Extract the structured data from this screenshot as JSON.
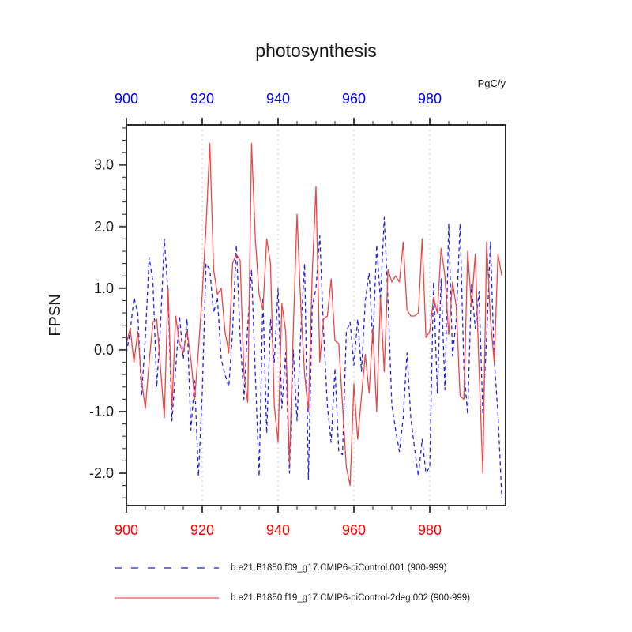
{
  "chart_data": {
    "type": "line",
    "title": "photosynthesis",
    "units": "PgC/y",
    "ylabel": "FPSN",
    "xlabel": "",
    "xlim": [
      900,
      1000
    ],
    "ylim": [
      -2.525,
      3.65
    ],
    "x_major_ticks": [
      900,
      920,
      940,
      960,
      980
    ],
    "x_minor_step": 5,
    "y_major_ticks": [
      3.0,
      2.0,
      1.0,
      0.0,
      -1.0,
      -2.0
    ],
    "y_minor_step": 0.2,
    "gridlines_x": [
      920,
      940,
      960,
      980
    ],
    "grid_style": "dotted",
    "top_axis_label_color": "#0000ff",
    "bottom_axis_label_color": "#ff0000",
    "x": {
      "start": 900,
      "end": 999,
      "step": 1
    },
    "series": [
      {
        "name": "b.e21.B1850.f09_g17.CMIP6-piControl.001 (900-999)",
        "color": "#2323e6",
        "style": "dashed",
        "values": [
          -0.05,
          0.3,
          0.85,
          0.6,
          -0.75,
          0.2,
          1.5,
          1.1,
          -0.6,
          0.4,
          1.8,
          0.9,
          -1.15,
          -0.3,
          0.55,
          -0.15,
          0.5,
          -1.3,
          -0.5,
          -2.05,
          -0.7,
          1.4,
          1.3,
          0.6,
          0.85,
          -0.15,
          -0.4,
          -0.6,
          0.3,
          1.7,
          0.2,
          -0.8,
          0.4,
          1.3,
          -0.4,
          -2.05,
          0.85,
          -1.35,
          0.5,
          -0.2,
          1.0,
          -0.95,
          -0.05,
          -2.0,
          0.0,
          -1.15,
          0.3,
          1.4,
          -2.1,
          0.7,
          1.0,
          1.85,
          0.3,
          -0.9,
          -1.5,
          -0.3,
          -1.65,
          -1.7,
          0.3,
          0.45,
          -0.25,
          0.5,
          -0.35,
          0.8,
          1.25,
          0.1,
          1.7,
          0.8,
          2.15,
          0.8,
          -0.9,
          -1.3,
          -1.65,
          -1.1,
          -0.05,
          -1.1,
          -1.6,
          -2.05,
          -1.45,
          -2.0,
          -1.9,
          1.1,
          -0.7,
          1.15,
          -0.65,
          2.05,
          -0.1,
          0.5,
          2.05,
          -0.3,
          -1.05,
          1.05,
          0.35,
          0.95,
          -1.05,
          0.2,
          1.75,
          -0.15,
          -1.05,
          -2.4
        ]
      },
      {
        "name": "b.e21.B1850.f19_g17.CMIP6-piControl-2deg.002 (900-999)",
        "color": "#f04545",
        "style": "solid",
        "values": [
          0.1,
          0.35,
          -0.2,
          0.3,
          -0.5,
          -0.95,
          -0.2,
          0.45,
          0.5,
          -0.3,
          -1.1,
          1.0,
          -0.95,
          0.55,
          0.1,
          -0.05,
          0.3,
          -0.15,
          -0.8,
          0.0,
          0.9,
          2.0,
          3.35,
          1.3,
          0.9,
          1.0,
          0.3,
          -0.05,
          1.4,
          1.55,
          1.45,
          -0.4,
          -0.85,
          3.35,
          1.8,
          0.9,
          0.65,
          1.8,
          1.4,
          -0.9,
          -1.5,
          0.75,
          0.3,
          -1.85,
          0.3,
          2.2,
          0.7,
          -0.4,
          -1.0,
          1.2,
          2.65,
          -0.2,
          0.5,
          0.55,
          1.15,
          0.15,
          0.1,
          -0.9,
          -1.9,
          -2.2,
          -0.55,
          -1.45,
          -0.75,
          -0.07,
          -0.7,
          0.35,
          -1.0,
          0.85,
          -0.35,
          1.3,
          1.1,
          1.2,
          1.1,
          1.75,
          0.65,
          0.55,
          0.55,
          0.6,
          1.8,
          0.2,
          0.3,
          0.85,
          0.6,
          1.65,
          1.2,
          0.25,
          1.1,
          0.7,
          -0.75,
          -0.8,
          1.6,
          0.7,
          1.55,
          -0.3,
          -2.0,
          1.75,
          0.5,
          -0.2,
          1.55,
          1.2
        ]
      }
    ]
  },
  "legend": {
    "items": [
      {
        "label": "b.e21.B1850.f09_g17.CMIP6-piControl.001 (900-999)"
      },
      {
        "label": "b.e21.B1850.f19_g17.CMIP6-piControl-2deg.002 (900-999)"
      }
    ]
  }
}
